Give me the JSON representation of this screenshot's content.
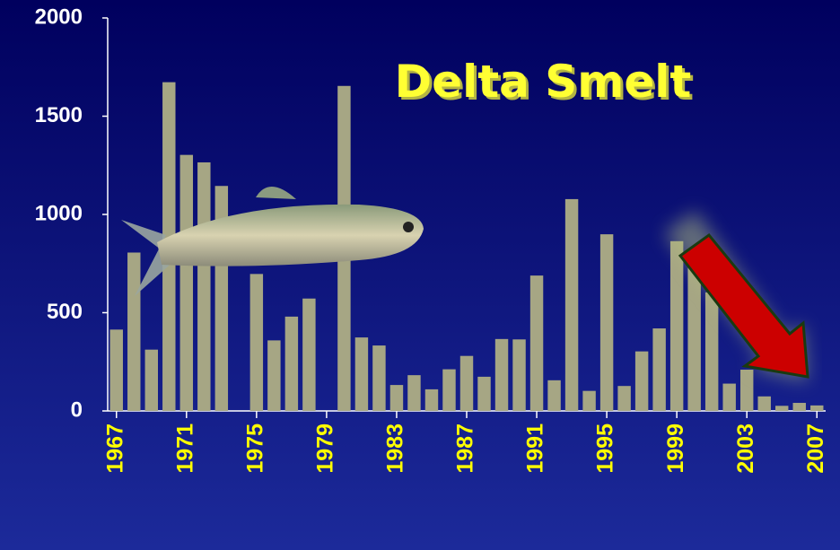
{
  "chart_data": {
    "type": "bar",
    "title": "Delta Smelt",
    "categories": [
      "1967",
      null,
      null,
      null,
      "1971",
      null,
      null,
      null,
      "1975",
      null,
      null,
      null,
      "1979",
      null,
      null,
      null,
      "1983",
      null,
      null,
      null,
      "1987",
      null,
      null,
      null,
      "1991",
      null,
      null,
      null,
      "1995",
      null,
      null,
      null,
      "1999",
      null,
      null,
      null,
      "2003",
      null,
      null,
      null,
      "2007"
    ],
    "values": [
      414,
      806,
      312,
      1673,
      1303,
      1265,
      1145,
      null,
      697,
      359,
      480,
      572,
      null,
      1654,
      374,
      333,
      132,
      182,
      110,
      212,
      280,
      174,
      366,
      364,
      689,
      156,
      1078,
      102,
      899,
      127,
      303,
      420,
      864,
      756,
      603,
      139,
      210,
      74,
      26,
      41,
      28
    ],
    "color": "#a6a684",
    "ylim": [
      0,
      2000
    ],
    "yticks": [
      0,
      500,
      1000,
      1500,
      2000
    ],
    "grid": false
  }
}
